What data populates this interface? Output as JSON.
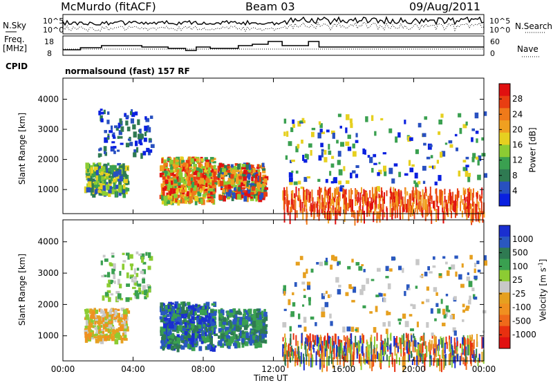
{
  "header": {
    "station": "McMurdo (fitACF)",
    "beam": "Beam 03",
    "date": "09/Aug/2011"
  },
  "panels": {
    "nsky_label": "N.Sky",
    "nsearch_label": "N.Search",
    "nsky_ticks": [
      "10^5",
      "10^0"
    ],
    "nsearch_ticks": [
      "10^5",
      "10^0"
    ],
    "freq_label": [
      "Freq.",
      "[MHz]"
    ],
    "freq_ticks": [
      "18",
      "8"
    ],
    "nave_label": "Nave",
    "nave_ticks": [
      "60",
      "0"
    ],
    "cpid_label": "CPID",
    "cpid_text": "normalsound (fast) 157 RF"
  },
  "colors": {
    "power": [
      "#0a20e0",
      "#2850c0",
      "#2f7a52",
      "#3aa050",
      "#8ccc33",
      "#e6d020",
      "#f0a020",
      "#ef7a1a",
      "#e83e12",
      "#e01010"
    ],
    "velocity": [
      "#1a2fd0",
      "#2a58c0",
      "#2f7a52",
      "#3aa050",
      "#8ccc33",
      "#c8c8c8",
      "#e6a020",
      "#f09020",
      "#ef6a1a",
      "#e83010",
      "#e01010"
    ]
  },
  "chart_data": [
    {
      "type": "heatmap",
      "title": "",
      "xlabel": "Time UT",
      "ylabel": "Slant Range [km]",
      "xticks": [
        "00:00",
        "04:00",
        "08:00",
        "12:00",
        "16:00",
        "20:00",
        "00:00"
      ],
      "yticks": [
        1000,
        2000,
        3000,
        4000
      ],
      "ylim": [
        200,
        4700
      ],
      "colorbar": {
        "label": "Power [dB]",
        "ticks": [
          "4",
          "8",
          "12",
          "16",
          "20",
          "24",
          "28"
        ]
      },
      "features": [
        {
          "time": "01:30-03:30",
          "range_km": "1000-1800",
          "level_db": "10-20"
        },
        {
          "time": "05:30-08:30",
          "range_km": "700-2000",
          "level_db": "18-30"
        },
        {
          "time": "09:00-11:30",
          "range_km": "800-1800",
          "level_db": "12-26"
        },
        {
          "time": "12:30-24:00",
          "range_km": "200-1000",
          "level_db": "20-30"
        }
      ]
    },
    {
      "type": "heatmap",
      "title": "",
      "xlabel": "Time UT",
      "ylabel": "Slant Range [km]",
      "xticks": [
        "00:00",
        "04:00",
        "08:00",
        "12:00",
        "16:00",
        "20:00",
        "00:00"
      ],
      "yticks": [
        1000,
        2000,
        3000,
        4000
      ],
      "ylim": [
        200,
        4700
      ],
      "colorbar": {
        "label": "Velocity [m s-1]",
        "ticks": [
          "1000",
          "500",
          "100",
          "25",
          "-25",
          "-100",
          "-500",
          "-1000"
        ]
      },
      "features": [
        {
          "time": "01:00-03:30",
          "range_km": "900-1800",
          "velocity_ms": "-100 to 25"
        },
        {
          "time": "05:30-08:30",
          "range_km": "700-2200",
          "velocity_ms": "100 to 1000"
        },
        {
          "time": "09:30-11:30",
          "range_km": "800-1800",
          "velocity_ms": "100 to 500"
        }
      ]
    }
  ]
}
